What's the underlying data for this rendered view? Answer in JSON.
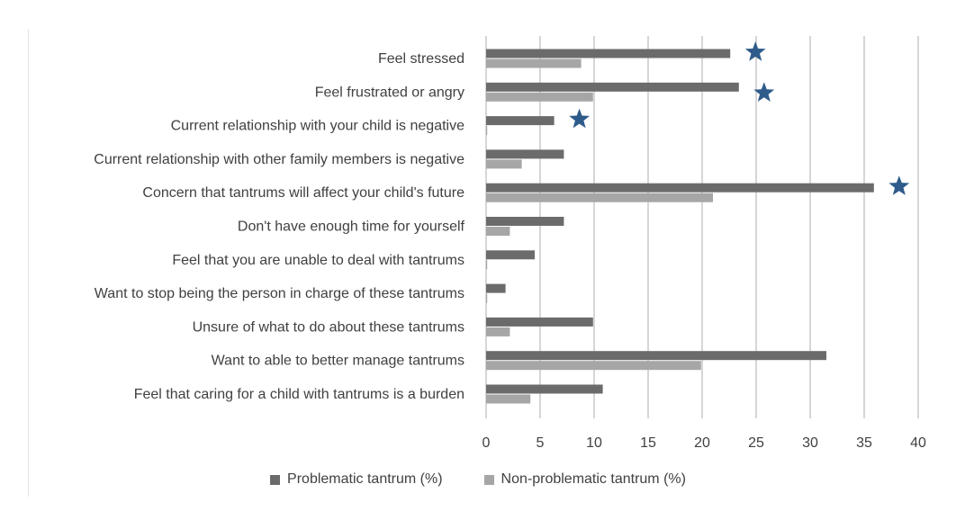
{
  "chart_data": {
    "type": "bar",
    "orientation": "horizontal",
    "title": "",
    "xlabel": "",
    "ylabel": "",
    "xlim": [
      0,
      40
    ],
    "x_ticks": [
      "0",
      "5",
      "10",
      "15",
      "20",
      "25",
      "30",
      "35",
      "40"
    ],
    "grid": "vertical",
    "legend_position": "bottom",
    "categories": [
      "Feel stressed",
      "Feel frustrated or angry",
      "Current relationship with your child is negative",
      "Current relationship with other family members is negative",
      "Concern that tantrums will affect your child's future",
      "Don't have enough time for yourself",
      "Feel that you are unable to deal with tantrums",
      "Want to stop being the person in charge of these tantrums",
      "Unsure of what to do about these tantrums",
      "Want to able to better manage tantrums",
      "Feel that caring for a child with tantrums is a burden"
    ],
    "series": [
      {
        "name": "Problematic tantrum (%)",
        "color": "#6b6b6b",
        "values": [
          22.6,
          23.4,
          6.3,
          7.2,
          35.9,
          7.2,
          4.5,
          1.8,
          9.9,
          31.5,
          10.8
        ]
      },
      {
        "name": "Non-problematic tantrum (%)",
        "color": "#a6a6a6",
        "values": [
          8.8,
          9.9,
          0.1,
          3.3,
          21.0,
          2.2,
          0.1,
          0.1,
          2.2,
          19.9,
          4.1
        ]
      }
    ],
    "significance_markers": {
      "symbol": "star",
      "color": "#2e5b8a",
      "categories": [
        "Feel stressed",
        "Feel frustrated or angry",
        "Current relationship with your child is negative",
        "Concern that tantrums will affect your child's future"
      ]
    }
  }
}
